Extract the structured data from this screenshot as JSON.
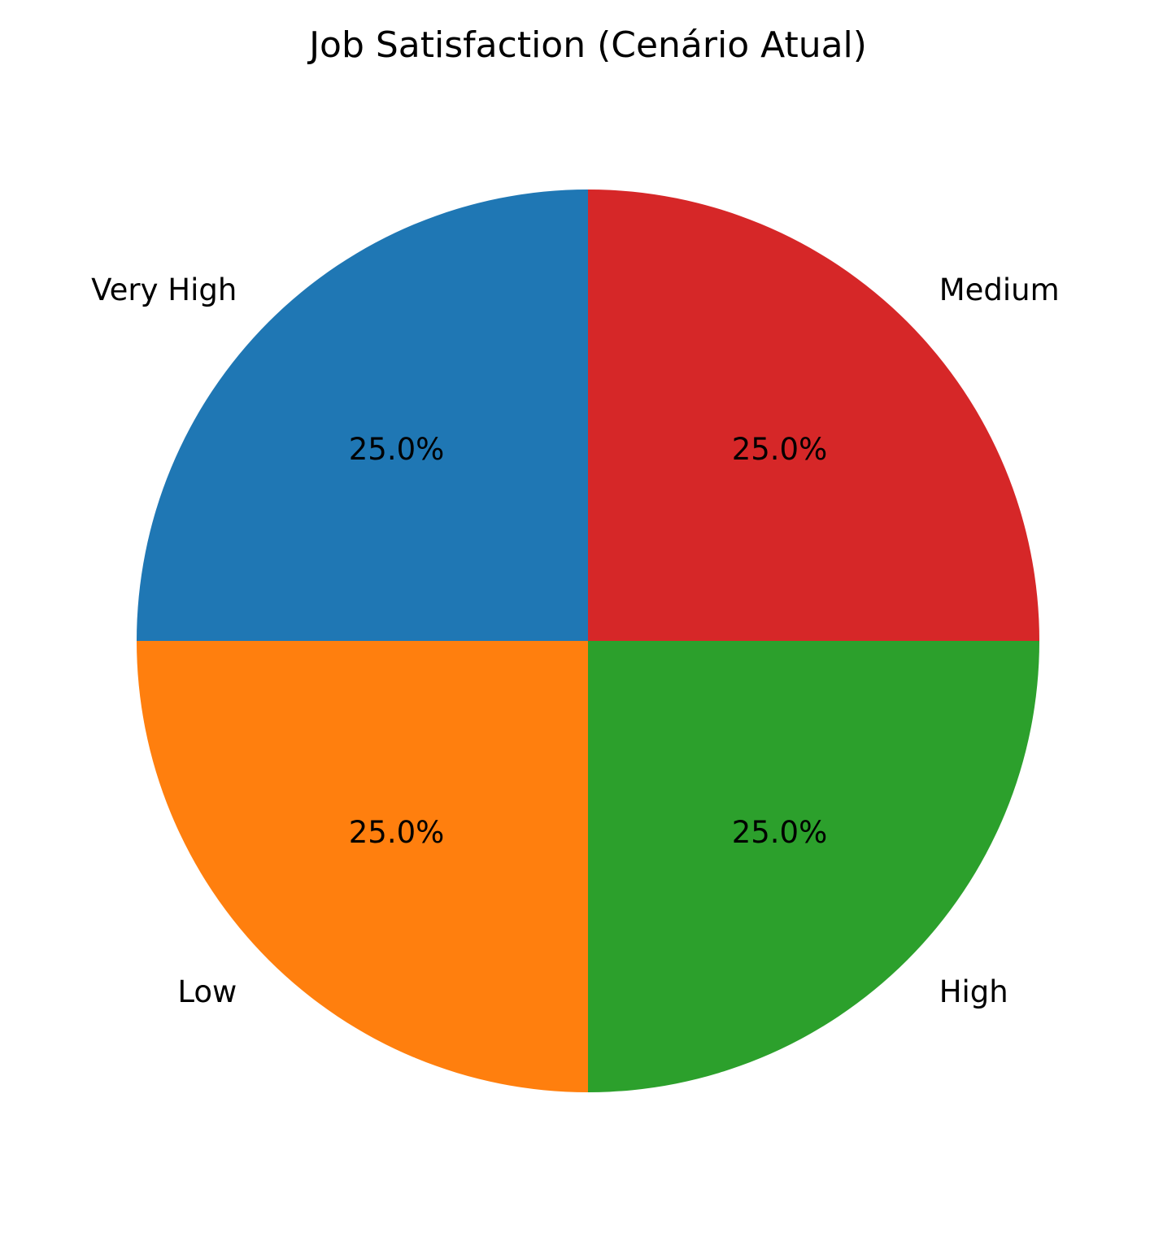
{
  "chart_data": {
    "type": "pie",
    "title": "Job Satisfaction (Cenário Atual)",
    "start_angle_deg": 90,
    "direction": "counterclockwise",
    "pct_format": "{v}%",
    "slices": [
      {
        "label": "Very High",
        "value": 25.0,
        "pct_label": "25.0%",
        "color": "#1f77b4"
      },
      {
        "label": "Low",
        "value": 25.0,
        "pct_label": "25.0%",
        "color": "#ff7f0e"
      },
      {
        "label": "High",
        "value": 25.0,
        "pct_label": "25.0%",
        "color": "#2ca02c"
      },
      {
        "label": "Medium",
        "value": 25.0,
        "pct_label": "25.0%",
        "color": "#d62728"
      }
    ]
  }
}
